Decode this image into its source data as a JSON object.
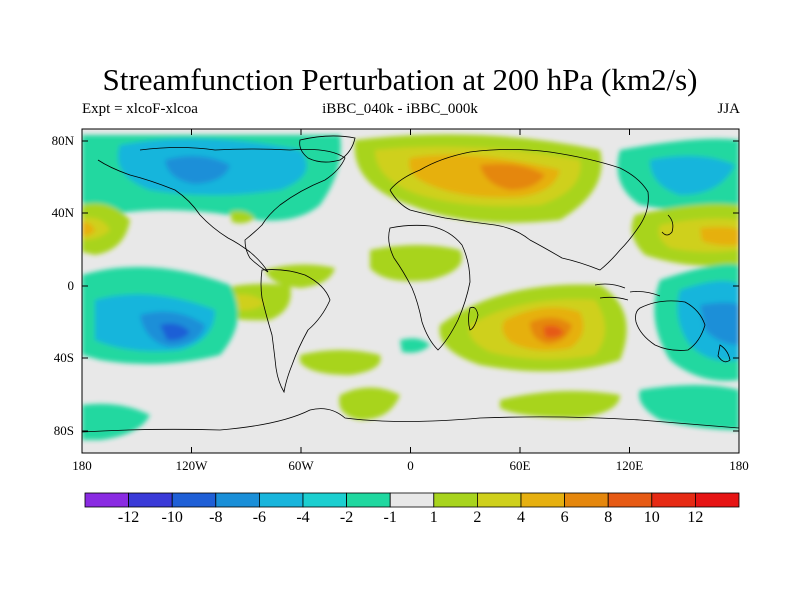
{
  "title": "Streamfunction Perturbation at 200 hPa (km2/s)",
  "subtitle_left": "Expt = xlcoF-xlcoa",
  "subtitle_center": "iBBC_040k - iBBC_000k",
  "subtitle_right": "JJA",
  "lat_labels": [
    "80N",
    "40N",
    "0",
    "40S",
    "80S"
  ],
  "lon_labels": [
    "180",
    "120W",
    "60W",
    "0",
    "60E",
    "120E",
    "180"
  ],
  "colorbar": {
    "labels": [
      "-12",
      "-10",
      "-8",
      "-6",
      "-4",
      "-2",
      "-1",
      "1",
      "2",
      "4",
      "6",
      "8",
      "10",
      "12"
    ],
    "colors": [
      "#8a2be2",
      "#3a3ad8",
      "#1f5fd6",
      "#1a8fd8",
      "#19b5dc",
      "#1ccfd0",
      "#20d8a0",
      "#e8e8e8",
      "#a8d41e",
      "#cfd01c",
      "#e6b010",
      "#e5870d",
      "#e65a14",
      "#e62a14",
      "#e61414"
    ]
  },
  "map": {
    "background_color": "#e8e8e8",
    "anomalies": [
      {
        "name": "anomaly-northeast-asia",
        "value": 4
      },
      {
        "name": "anomaly-eurasia-ridge",
        "value": 6
      },
      {
        "name": "anomaly-indian-ocean",
        "value": 6
      },
      {
        "name": "anomaly-south-pacific",
        "value": -8
      },
      {
        "name": "anomaly-north-america",
        "value": -6
      },
      {
        "name": "anomaly-west-pacific",
        "value": -6
      },
      {
        "name": "anomaly-southern-ocean",
        "value": 2
      }
    ]
  }
}
